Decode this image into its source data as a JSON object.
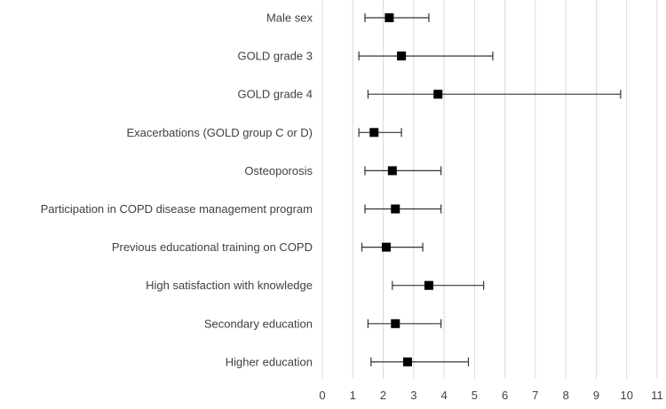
{
  "chart_data": {
    "type": "scatter",
    "variant": "forest-plot",
    "title": "",
    "xlabel": "",
    "ylabel": "",
    "xlim": [
      0,
      11
    ],
    "x_ticks": [
      0,
      1,
      2,
      3,
      4,
      5,
      6,
      7,
      8,
      9,
      10,
      11
    ],
    "grid": true,
    "legend": "none",
    "grid_color": "#d9d9d9",
    "line_color": "#333333",
    "marker_color": "#000000",
    "text_color": "#404040",
    "rows": [
      {
        "label": "Male sex",
        "or": 2.2,
        "ci_low": 1.4,
        "ci_high": 3.5
      },
      {
        "label": "GOLD grade 3",
        "or": 2.6,
        "ci_low": 1.2,
        "ci_high": 5.6
      },
      {
        "label": "GOLD grade 4",
        "or": 3.8,
        "ci_low": 1.5,
        "ci_high": 9.8
      },
      {
        "label": "Exacerbations (GOLD group C or D)",
        "or": 1.7,
        "ci_low": 1.2,
        "ci_high": 2.6
      },
      {
        "label": "Osteoporosis",
        "or": 2.3,
        "ci_low": 1.4,
        "ci_high": 3.9
      },
      {
        "label": "Participation in COPD disease management program",
        "or": 2.4,
        "ci_low": 1.4,
        "ci_high": 3.9
      },
      {
        "label": "Previous educational training on COPD",
        "or": 2.1,
        "ci_low": 1.3,
        "ci_high": 3.3
      },
      {
        "label": "High satisfaction with knowledge",
        "or": 3.5,
        "ci_low": 2.3,
        "ci_high": 5.3
      },
      {
        "label": "Secondary education",
        "or": 2.4,
        "ci_low": 1.5,
        "ci_high": 3.9
      },
      {
        "label": "Higher education",
        "or": 2.8,
        "ci_low": 1.6,
        "ci_high": 4.8
      }
    ]
  }
}
